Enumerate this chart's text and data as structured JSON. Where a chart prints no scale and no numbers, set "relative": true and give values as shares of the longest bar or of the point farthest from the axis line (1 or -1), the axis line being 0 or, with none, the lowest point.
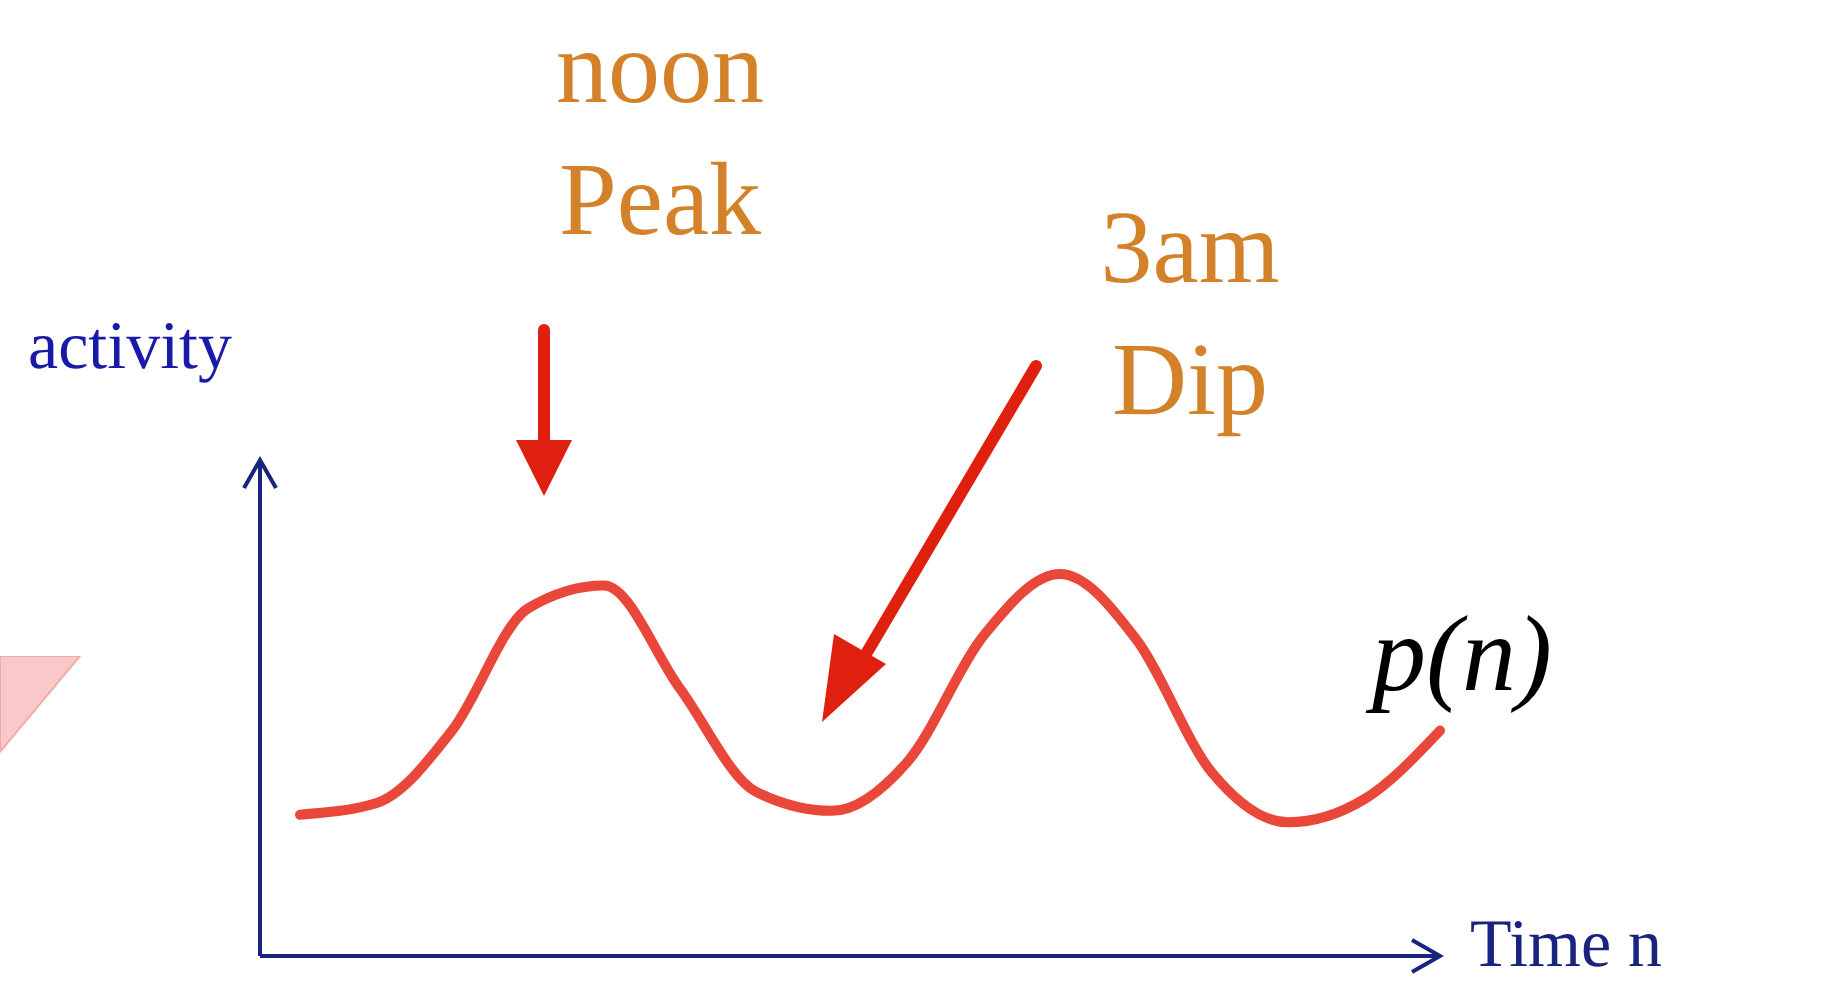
{
  "chart_data": {
    "type": "line",
    "relative": true,
    "xlabel": "Time n",
    "ylabel": "activity",
    "categories": [
      null,
      null,
      null,
      null,
      null,
      null,
      null,
      null,
      null,
      null,
      null,
      null,
      null,
      null,
      null,
      null
    ],
    "series": [
      {
        "name": "p(n)",
        "color": "#e8473a",
        "values": [
          0.37,
          0.4,
          0.59,
          0.91,
          0.97,
          0.7,
          0.43,
          0.38,
          0.51,
          0.84,
          1.0,
          0.83,
          0.48,
          0.35,
          0.41,
          0.59
        ]
      }
    ],
    "annotations": [
      "noon\nPeak",
      "3am\nDip"
    ],
    "marker": "none",
    "line_style": "solid",
    "grid": false,
    "legend": false
  }
}
